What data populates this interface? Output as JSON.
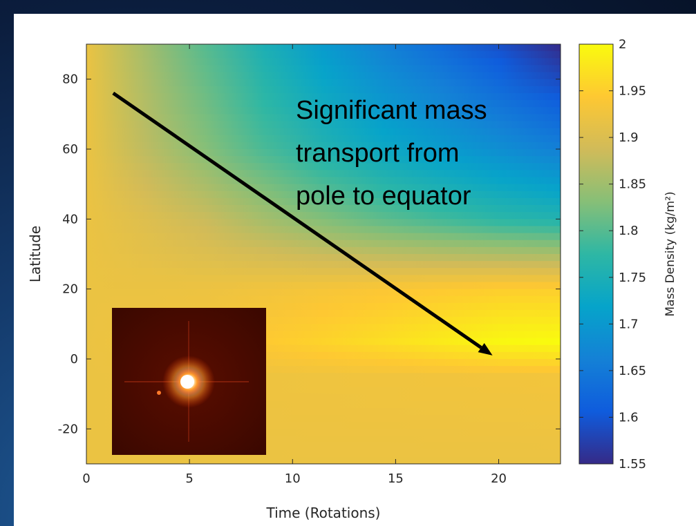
{
  "chart_data": {
    "type": "heatmap",
    "title": "",
    "xlabel": "Time (Rotations)",
    "ylabel": "Latitude",
    "xlim": [
      0,
      23
    ],
    "ylim": [
      -30,
      90
    ],
    "xticks": [
      0,
      5,
      10,
      15,
      20
    ],
    "xtick_labels": [
      "0",
      "5",
      "10",
      "15",
      "20"
    ],
    "yticks": [
      -20,
      0,
      20,
      40,
      60,
      80
    ],
    "ytick_labels": [
      "-20",
      "0",
      "20",
      "40",
      "60",
      "80"
    ],
    "colorbar": {
      "label": "Mass Density (kg/m²)",
      "range": [
        1.55,
        2.0
      ],
      "ticks": [
        1.55,
        1.6,
        1.65,
        1.7,
        1.75,
        1.8,
        1.85,
        1.9,
        1.95,
        2.0
      ],
      "tick_labels": [
        "1.55",
        "1.6",
        "1.65",
        "1.7",
        "1.75",
        "1.8",
        "1.85",
        "1.9",
        "1.95",
        "2"
      ],
      "colormap": "parula"
    },
    "series": [
      {
        "latitude": 90,
        "density_at_time": [
          [
            0,
            1.92
          ],
          [
            3,
            1.85
          ],
          [
            8,
            1.76
          ],
          [
            13,
            1.68
          ],
          [
            18,
            1.62
          ],
          [
            23,
            1.55
          ]
        ]
      },
      {
        "latitude": 60,
        "density_at_time": [
          [
            0,
            1.92
          ],
          [
            3,
            1.87
          ],
          [
            8,
            1.8
          ],
          [
            13,
            1.74
          ],
          [
            18,
            1.7
          ],
          [
            23,
            1.66
          ]
        ]
      },
      {
        "latitude": 40,
        "density_at_time": [
          [
            0,
            1.92
          ],
          [
            5,
            1.89
          ],
          [
            10,
            1.84
          ],
          [
            15,
            1.8
          ],
          [
            20,
            1.77
          ],
          [
            23,
            1.76
          ]
        ]
      },
      {
        "latitude": 20,
        "density_at_time": [
          [
            0,
            1.92
          ],
          [
            5,
            1.92
          ],
          [
            10,
            1.93
          ],
          [
            15,
            1.94
          ],
          [
            20,
            1.95
          ],
          [
            23,
            1.95
          ]
        ]
      },
      {
        "latitude": 5,
        "density_at_time": [
          [
            0,
            1.92
          ],
          [
            5,
            1.93
          ],
          [
            10,
            1.95
          ],
          [
            15,
            1.97
          ],
          [
            20,
            1.995
          ],
          [
            23,
            2.0
          ]
        ]
      },
      {
        "latitude": -5,
        "density_at_time": [
          [
            0,
            1.92
          ],
          [
            10,
            1.925
          ],
          [
            23,
            1.93
          ]
        ]
      },
      {
        "latitude": -30,
        "density_at_time": [
          [
            0,
            1.92
          ],
          [
            23,
            1.92
          ]
        ]
      }
    ],
    "annotations": [
      {
        "text_lines": [
          "Significant mass",
          "transport from",
          "pole to equator"
        ]
      },
      {
        "type": "arrow",
        "from": [
          1.3,
          76
        ],
        "to": [
          19.7,
          1
        ]
      }
    ],
    "grid": false,
    "inset": "star image (dark red background, bright saturated center)"
  },
  "colors": {
    "parula": [
      "#352a87",
      "#0f5cdd",
      "#1481d6",
      "#06a4ca",
      "#2eb7a4",
      "#87bf77",
      "#d1bb59",
      "#fec832",
      "#f9fb0e"
    ],
    "arrow": "#000000",
    "axis": "#262626"
  }
}
